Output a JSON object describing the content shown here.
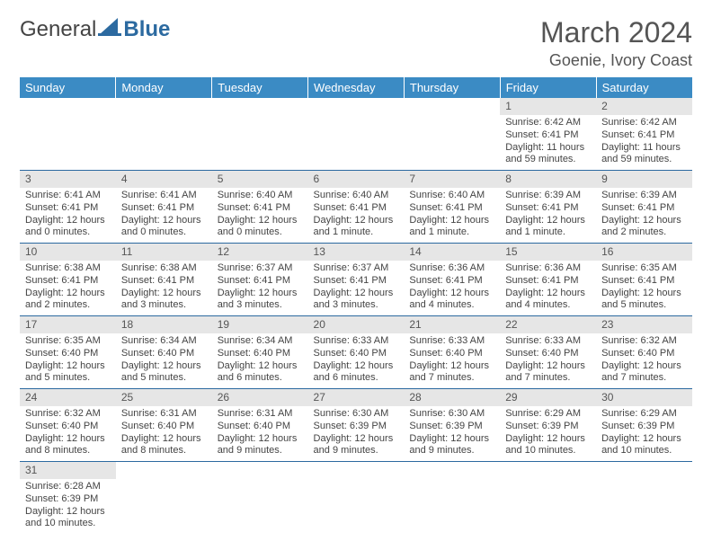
{
  "brand": {
    "part1": "General",
    "part2": "Blue"
  },
  "title": "March 2024",
  "location": "Goenie, Ivory Coast",
  "colors": {
    "header_bg": "#3b8bc4",
    "header_text": "#ffffff",
    "daynum_bg": "#e6e6e6",
    "border": "#2c6aa0",
    "text": "#444444",
    "brand_blue": "#2c6aa0"
  },
  "weekdays": [
    "Sunday",
    "Monday",
    "Tuesday",
    "Wednesday",
    "Thursday",
    "Friday",
    "Saturday"
  ],
  "weeks": [
    [
      null,
      null,
      null,
      null,
      null,
      {
        "n": "1",
        "sr": "6:42 AM",
        "ss": "6:41 PM",
        "dl": "11 hours and 59 minutes."
      },
      {
        "n": "2",
        "sr": "6:42 AM",
        "ss": "6:41 PM",
        "dl": "11 hours and 59 minutes."
      }
    ],
    [
      {
        "n": "3",
        "sr": "6:41 AM",
        "ss": "6:41 PM",
        "dl": "12 hours and 0 minutes."
      },
      {
        "n": "4",
        "sr": "6:41 AM",
        "ss": "6:41 PM",
        "dl": "12 hours and 0 minutes."
      },
      {
        "n": "5",
        "sr": "6:40 AM",
        "ss": "6:41 PM",
        "dl": "12 hours and 0 minutes."
      },
      {
        "n": "6",
        "sr": "6:40 AM",
        "ss": "6:41 PM",
        "dl": "12 hours and 1 minute."
      },
      {
        "n": "7",
        "sr": "6:40 AM",
        "ss": "6:41 PM",
        "dl": "12 hours and 1 minute."
      },
      {
        "n": "8",
        "sr": "6:39 AM",
        "ss": "6:41 PM",
        "dl": "12 hours and 1 minute."
      },
      {
        "n": "9",
        "sr": "6:39 AM",
        "ss": "6:41 PM",
        "dl": "12 hours and 2 minutes."
      }
    ],
    [
      {
        "n": "10",
        "sr": "6:38 AM",
        "ss": "6:41 PM",
        "dl": "12 hours and 2 minutes."
      },
      {
        "n": "11",
        "sr": "6:38 AM",
        "ss": "6:41 PM",
        "dl": "12 hours and 3 minutes."
      },
      {
        "n": "12",
        "sr": "6:37 AM",
        "ss": "6:41 PM",
        "dl": "12 hours and 3 minutes."
      },
      {
        "n": "13",
        "sr": "6:37 AM",
        "ss": "6:41 PM",
        "dl": "12 hours and 3 minutes."
      },
      {
        "n": "14",
        "sr": "6:36 AM",
        "ss": "6:41 PM",
        "dl": "12 hours and 4 minutes."
      },
      {
        "n": "15",
        "sr": "6:36 AM",
        "ss": "6:41 PM",
        "dl": "12 hours and 4 minutes."
      },
      {
        "n": "16",
        "sr": "6:35 AM",
        "ss": "6:41 PM",
        "dl": "12 hours and 5 minutes."
      }
    ],
    [
      {
        "n": "17",
        "sr": "6:35 AM",
        "ss": "6:40 PM",
        "dl": "12 hours and 5 minutes."
      },
      {
        "n": "18",
        "sr": "6:34 AM",
        "ss": "6:40 PM",
        "dl": "12 hours and 5 minutes."
      },
      {
        "n": "19",
        "sr": "6:34 AM",
        "ss": "6:40 PM",
        "dl": "12 hours and 6 minutes."
      },
      {
        "n": "20",
        "sr": "6:33 AM",
        "ss": "6:40 PM",
        "dl": "12 hours and 6 minutes."
      },
      {
        "n": "21",
        "sr": "6:33 AM",
        "ss": "6:40 PM",
        "dl": "12 hours and 7 minutes."
      },
      {
        "n": "22",
        "sr": "6:33 AM",
        "ss": "6:40 PM",
        "dl": "12 hours and 7 minutes."
      },
      {
        "n": "23",
        "sr": "6:32 AM",
        "ss": "6:40 PM",
        "dl": "12 hours and 7 minutes."
      }
    ],
    [
      {
        "n": "24",
        "sr": "6:32 AM",
        "ss": "6:40 PM",
        "dl": "12 hours and 8 minutes."
      },
      {
        "n": "25",
        "sr": "6:31 AM",
        "ss": "6:40 PM",
        "dl": "12 hours and 8 minutes."
      },
      {
        "n": "26",
        "sr": "6:31 AM",
        "ss": "6:40 PM",
        "dl": "12 hours and 9 minutes."
      },
      {
        "n": "27",
        "sr": "6:30 AM",
        "ss": "6:39 PM",
        "dl": "12 hours and 9 minutes."
      },
      {
        "n": "28",
        "sr": "6:30 AM",
        "ss": "6:39 PM",
        "dl": "12 hours and 9 minutes."
      },
      {
        "n": "29",
        "sr": "6:29 AM",
        "ss": "6:39 PM",
        "dl": "12 hours and 10 minutes."
      },
      {
        "n": "30",
        "sr": "6:29 AM",
        "ss": "6:39 PM",
        "dl": "12 hours and 10 minutes."
      }
    ],
    [
      {
        "n": "31",
        "sr": "6:28 AM",
        "ss": "6:39 PM",
        "dl": "12 hours and 10 minutes."
      },
      null,
      null,
      null,
      null,
      null,
      null
    ]
  ],
  "labels": {
    "sunrise": "Sunrise: ",
    "sunset": "Sunset: ",
    "daylight": "Daylight: "
  }
}
